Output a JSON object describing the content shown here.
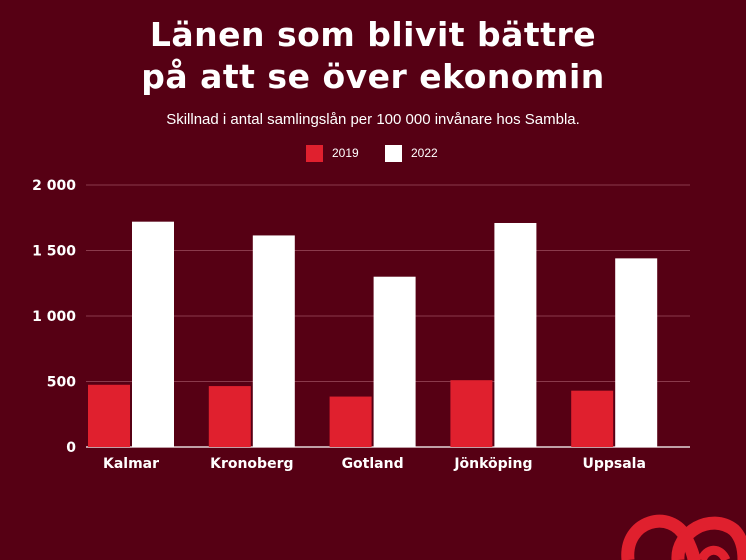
{
  "chart_data": {
    "type": "bar",
    "title": "Länen som blivit bättre på att se över ekonomin",
    "title_lines": [
      "Länen som blivit bättre",
      "på att se över ekonomin"
    ],
    "subtitle": "Skillnad i antal samlingslån per 100 000 invånare hos Sambla.",
    "categories": [
      "Kalmar",
      "Kronoberg",
      "Gotland",
      "Jönköping",
      "Uppsala"
    ],
    "series": [
      {
        "name": "2019",
        "color": "#e0202e",
        "values": [
          475,
          465,
          385,
          510,
          430
        ]
      },
      {
        "name": "2022",
        "color": "#ffffff",
        "values": [
          1720,
          1615,
          1300,
          1710,
          1440
        ]
      }
    ],
    "yticks": [
      "0",
      "500",
      "1 000",
      "1 500",
      "2 000"
    ],
    "ytick_values": [
      0,
      500,
      1000,
      1500,
      2000
    ],
    "ylim": [
      0,
      2000
    ],
    "grid": true,
    "legend_position": "top-center"
  },
  "colors": {
    "background": "#560014",
    "gridline": "#8a3a4c",
    "logo": "#e0202e"
  },
  "logo_icon": "sambla-logo-icon"
}
